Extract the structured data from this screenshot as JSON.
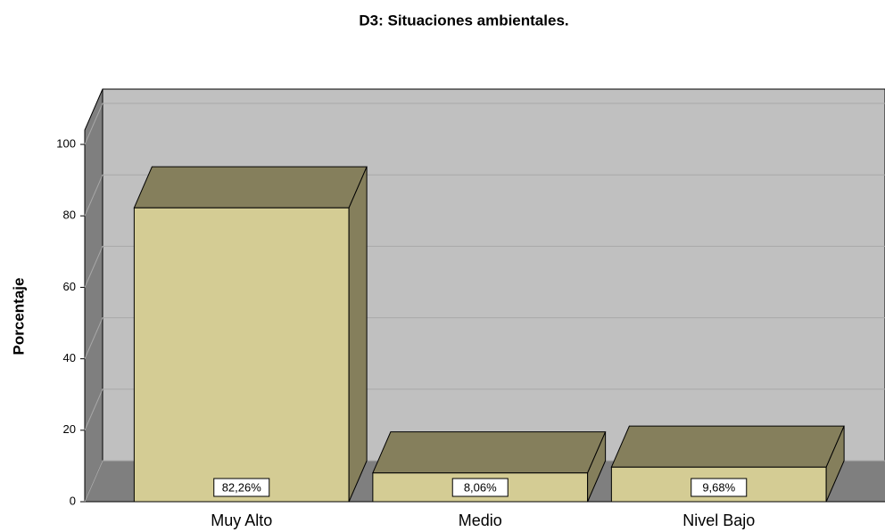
{
  "chart_data": {
    "type": "bar3d",
    "title": "D3: Situaciones ambientales.",
    "y_label": "Porcentaje",
    "categories": [
      "Muy Alto",
      "Medio",
      "Nivel Bajo"
    ],
    "values": [
      82.26,
      8.06,
      9.68
    ],
    "value_labels": [
      "82,26%",
      "8,06%",
      "9,68%"
    ],
    "color": "#d4cc94",
    "ylim": [
      0,
      104
    ],
    "yticks": [
      0,
      20,
      40,
      60,
      80,
      100
    ],
    "grid": true
  }
}
